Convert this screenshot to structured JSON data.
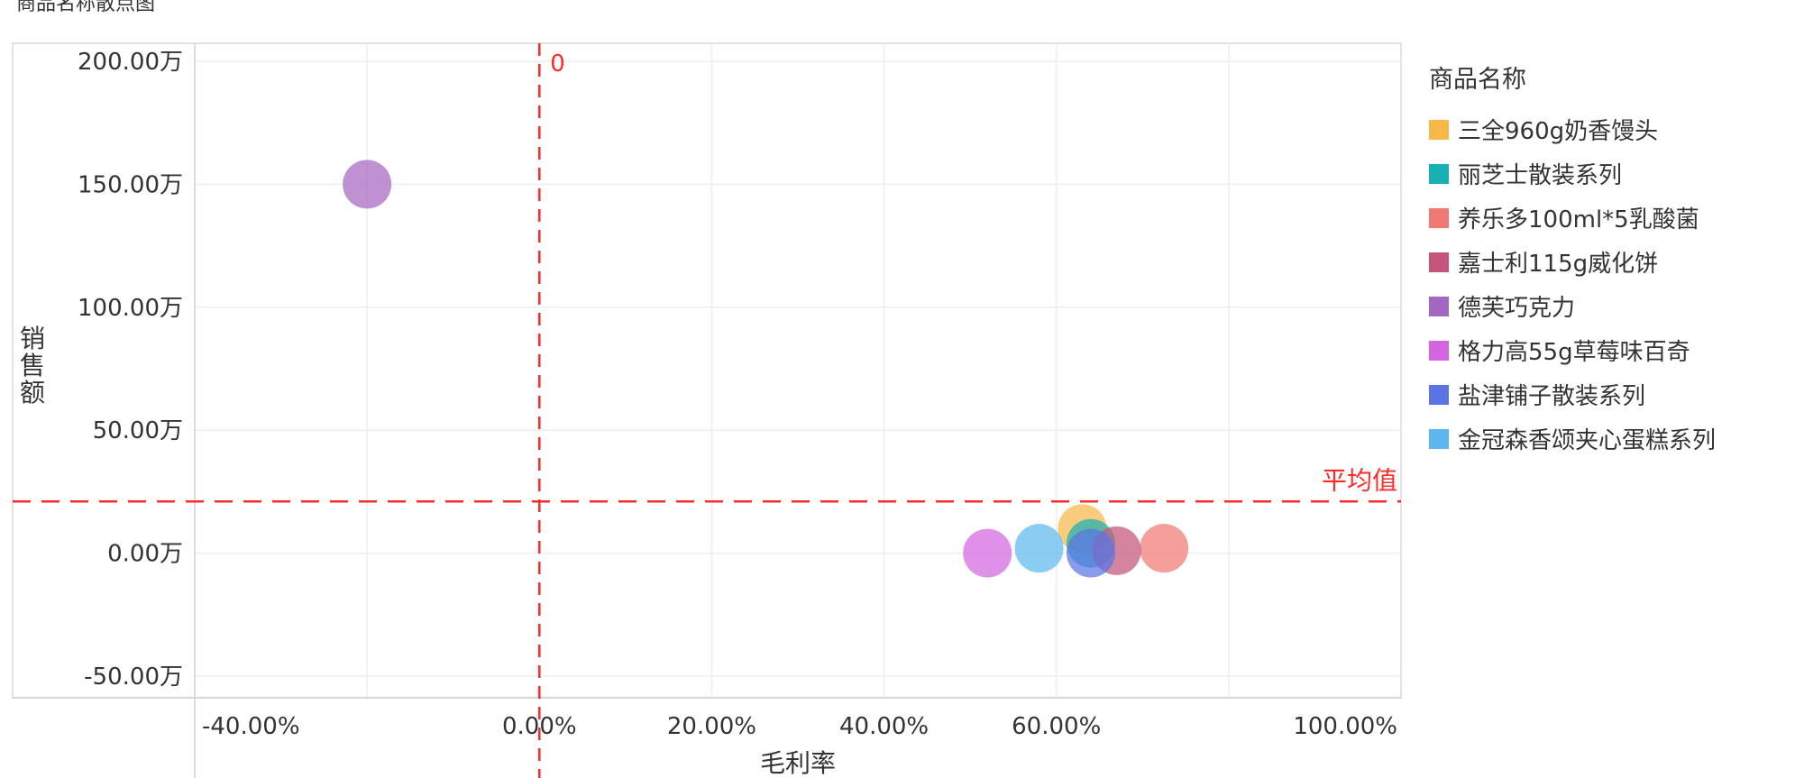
{
  "title": "商品名称散点图",
  "legend": {
    "title": "商品名称",
    "items": [
      {
        "label": "三全960g奶香馒头",
        "color": "#f7b84b"
      },
      {
        "label": "丽芝士散装系列",
        "color": "#19b0b3"
      },
      {
        "label": "养乐多100ml*5乳酸菌",
        "color": "#ef7a73"
      },
      {
        "label": "嘉士利115g威化饼",
        "color": "#c4547a"
      },
      {
        "label": "德芙巧克力",
        "color": "#a367c1"
      },
      {
        "label": "格力高55g草莓味百奇",
        "color": "#d365e0"
      },
      {
        "label": "盐津铺子散装系列",
        "color": "#5a74e6"
      },
      {
        "label": "金冠森香颂夹心蛋糕系列",
        "color": "#5eb8ef"
      }
    ]
  },
  "chart_data": {
    "type": "scatter",
    "xlabel": "毛利率",
    "ylabel": "销售额",
    "xlim": [
      -0.4,
      1.0
    ],
    "ylim": [
      -0.5,
      2.0
    ],
    "x_ticks": [
      {
        "value": -0.4,
        "label": "-40.00%"
      },
      {
        "value": 0.0,
        "label": "0.00%"
      },
      {
        "value": 0.2,
        "label": "20.00%"
      },
      {
        "value": 0.4,
        "label": "40.00%"
      },
      {
        "value": 0.6,
        "label": "60.00%"
      },
      {
        "value": 1.0,
        "label": "100.00%"
      }
    ],
    "x_gridlines": [
      -0.2,
      0.2,
      0.4,
      0.6,
      0.8
    ],
    "y_ticks": [
      {
        "value": 2.0,
        "label": "200.00万"
      },
      {
        "value": 1.5,
        "label": "150.00万"
      },
      {
        "value": 1.0,
        "label": "100.00万"
      },
      {
        "value": 0.5,
        "label": "50.00万"
      },
      {
        "value": 0.0,
        "label": "0.00万"
      },
      {
        "value": -0.5,
        "label": "-50.00万"
      }
    ],
    "reference_lines": [
      {
        "axis": "x",
        "value": 0.0,
        "label": "0",
        "color": "#ff2a2a"
      },
      {
        "axis": "y",
        "value": 0.21,
        "label": "平均值",
        "color": "#ff2a2a"
      }
    ],
    "series": [
      {
        "name": "三全960g奶香馒头",
        "color": "#f7b84b",
        "points": [
          {
            "x": 0.63,
            "y": 0.1
          }
        ]
      },
      {
        "name": "丽芝士散装系列",
        "color": "#19b0b3",
        "points": [
          {
            "x": 0.64,
            "y": 0.04
          }
        ]
      },
      {
        "name": "养乐多100ml*5乳酸菌",
        "color": "#ef7a73",
        "points": [
          {
            "x": 0.725,
            "y": 0.02
          }
        ]
      },
      {
        "name": "嘉士利115g威化饼",
        "color": "#c4547a",
        "points": [
          {
            "x": 0.67,
            "y": 0.01
          }
        ]
      },
      {
        "name": "德芙巧克力",
        "color": "#a367c1",
        "points": [
          {
            "x": -0.2,
            "y": 1.5
          }
        ]
      },
      {
        "name": "格力高55g草莓味百奇",
        "color": "#d365e0",
        "points": [
          {
            "x": 0.52,
            "y": 0.0
          }
        ]
      },
      {
        "name": "盐津铺子散装系列",
        "color": "#5a74e6",
        "points": [
          {
            "x": 0.64,
            "y": 0.0
          }
        ]
      },
      {
        "name": "金冠森香颂夹心蛋糕系列",
        "color": "#5eb8ef",
        "points": [
          {
            "x": 0.58,
            "y": 0.02
          }
        ]
      }
    ]
  }
}
